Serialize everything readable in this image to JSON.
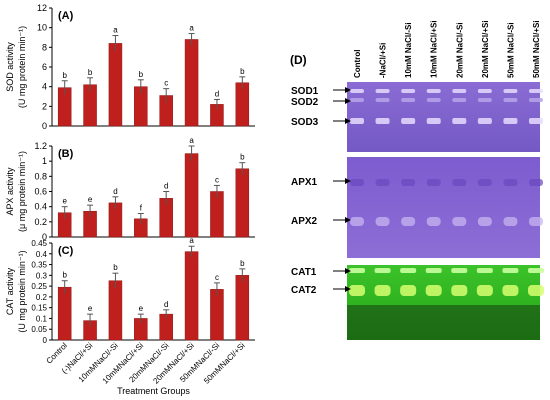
{
  "colors": {
    "bar": "#c0201d",
    "bar_edge": "#8e1512",
    "axis": "#000000",
    "gel_purple": "#7e5fc9",
    "gel_green": "#2fbf1e"
  },
  "chart_data": [
    {
      "type": "bar",
      "panel": "(A)",
      "ylabel_line1": "SOD activity",
      "ylabel_line2": "(U mg protein min⁻¹)",
      "ylim": [
        0,
        12
      ],
      "yticks": [
        "0",
        "2",
        "4",
        "6",
        "8",
        "10",
        "12"
      ],
      "categories": [
        "Control",
        "(-)NaCl/+Si",
        "10mMNaCl/-Si",
        "10mMNaCl/+Si",
        "20mMNaCl/-Si",
        "20mMNaCl/+Si",
        "50mMNaCl/-Si",
        "50mMNaCl/+Si"
      ],
      "values": [
        3.9,
        4.2,
        8.4,
        4.0,
        3.1,
        8.8,
        2.2,
        4.4
      ],
      "errors": [
        0.7,
        0.7,
        0.8,
        0.7,
        0.7,
        0.6,
        0.5,
        0.6
      ],
      "letters": [
        "b",
        "b",
        "a",
        "b",
        "c",
        "a",
        "d",
        "b"
      ]
    },
    {
      "type": "bar",
      "panel": "(B)",
      "ylabel_line1": "APX activity",
      "ylabel_line2": "(μ mg protein min⁻¹)",
      "ylim": [
        0,
        1.2
      ],
      "yticks": [
        "0",
        "0.2",
        "0.4",
        "0.6",
        "0.8",
        "1",
        "1.2"
      ],
      "categories": [
        "Control",
        "(-)NaCl/+Si",
        "10mMNaCl/-Si",
        "10mMNaCl/+Si",
        "20mMNaCl/-Si",
        "20mMNaCl/+Si",
        "50mMNaCl/-Si",
        "50mMNaCl/+Si"
      ],
      "values": [
        0.32,
        0.34,
        0.45,
        0.24,
        0.51,
        1.1,
        0.6,
        0.9
      ],
      "errors": [
        0.08,
        0.08,
        0.08,
        0.07,
        0.09,
        0.1,
        0.08,
        0.08
      ],
      "letters": [
        "e",
        "e",
        "d",
        "f",
        "d",
        "a",
        "c",
        "b"
      ]
    },
    {
      "type": "bar",
      "panel": "(C)",
      "ylabel_line1": "CAT activity",
      "ylabel_line2": "(U mg protein min⁻¹)",
      "ylim": [
        0,
        0.45
      ],
      "yticks": [
        "0",
        "0.05",
        "0.1",
        "0.15",
        "0.2",
        "0.25",
        "0.3",
        "0.35",
        "0.4",
        "0.45"
      ],
      "categories": [
        "Control",
        "(-)NaCl/+Si",
        "10mMNaCl/-Si",
        "10mMNaCl/+Si",
        "20mMNaCl/-Si",
        "20mMNaCl/+Si",
        "50mMNaCl/-Si",
        "50mMNaCl/+Si"
      ],
      "values": [
        0.245,
        0.09,
        0.275,
        0.1,
        0.12,
        0.41,
        0.235,
        0.3
      ],
      "errors": [
        0.03,
        0.03,
        0.035,
        0.02,
        0.02,
        0.025,
        0.03,
        0.03
      ],
      "letters": [
        "b",
        "e",
        "b",
        "e",
        "d",
        "a",
        "c",
        "b"
      ],
      "xlabels": [
        "Control",
        "(-)NaCl/+Si",
        "10mMNaCl/-Si",
        "10mMNaCl/+Si",
        "20mMNaCl/-Si",
        "20mMNaCl/+Si",
        "50mMNaCl/-Si",
        "50mMNaCl/+Si"
      ],
      "xlabel": "Treatment Groups"
    }
  ],
  "gel": {
    "panel": "(D)",
    "lanes": [
      "Control",
      "-NaCl/+Si",
      "10mM NaCl/-Si",
      "10mM NaCl/+Si",
      "20mM NaCl/-Si",
      "20mM NaCl/+Si",
      "50mM NaCl/-Si",
      "50mM NaCl/+Si"
    ],
    "sod_labels": [
      "SOD1",
      "SOD2",
      "SOD3"
    ],
    "apx_labels": [
      "APX1",
      "APX2"
    ],
    "cat_labels": [
      "CAT1",
      "CAT2"
    ]
  }
}
